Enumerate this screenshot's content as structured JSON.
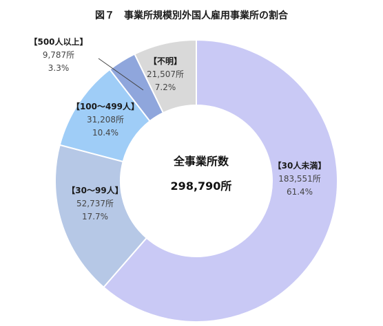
{
  "chart_data": {
    "type": "pie",
    "title": "図７　事業所規模別外国人雇用事業所の割合",
    "center_label": "全事業所数",
    "center_value": "298,790所",
    "slices": [
      {
        "name": "【30人未満】",
        "count": "183,551所",
        "percent_label": "61.4%",
        "value": 61.4,
        "color": "#c9c9f5"
      },
      {
        "name": "【30～99人】",
        "count": "52,737所",
        "percent_label": "17.7%",
        "value": 17.7,
        "color": "#b6c8e6"
      },
      {
        "name": "【100～499人】",
        "count": "31,208所",
        "percent_label": "10.4%",
        "value": 10.4,
        "color": "#9fcdf7"
      },
      {
        "name": "【500人以上】",
        "count": "9,787所",
        "percent_label": "3.3%",
        "value": 3.3,
        "color": "#8fa6dc"
      },
      {
        "name": "【不明】",
        "count": "21,507所",
        "percent_label": "7.2%",
        "value": 7.2,
        "color": "#d9d9d9"
      }
    ]
  }
}
